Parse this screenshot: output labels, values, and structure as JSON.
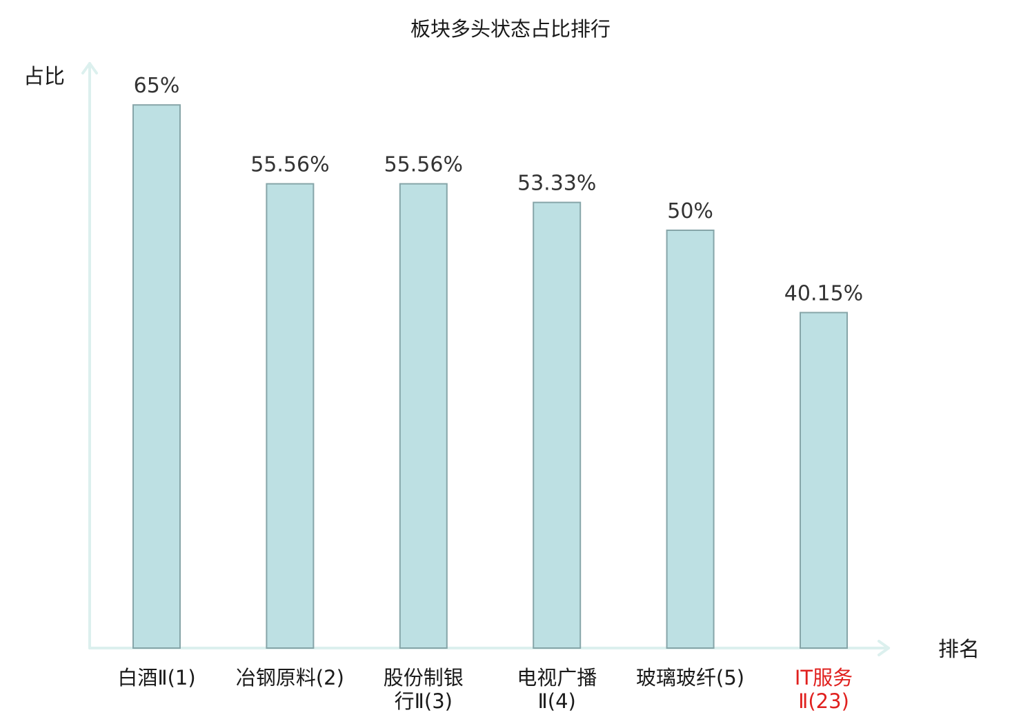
{
  "colors": {
    "bar_fill": "#bde0e3",
    "bar_stroke": "#86a5a8",
    "axis": "#dcf0ee",
    "label_default": "#1a1a1a",
    "label_highlight": "#e0201e"
  },
  "chart_data": {
    "type": "bar",
    "title": "板块多头状态占比排行",
    "xlabel": "排名",
    "ylabel": "占比",
    "ylim": [
      0,
      75
    ],
    "grid": false,
    "categories": [
      [
        "白酒Ⅱ(1)"
      ],
      [
        "冶钢原料(2)"
      ],
      [
        "股份制银",
        "行Ⅱ(3)"
      ],
      [
        "电视广播",
        "Ⅱ(4)"
      ],
      [
        "玻璃玻纤(5)"
      ],
      [
        "IT服务",
        "Ⅱ(23)"
      ]
    ],
    "highlight_index": 5,
    "values": [
      65,
      55.56,
      55.56,
      53.33,
      50,
      40.15
    ],
    "value_labels": [
      "65%",
      "55.56%",
      "55.56%",
      "53.33%",
      "50%",
      "40.15%"
    ]
  }
}
